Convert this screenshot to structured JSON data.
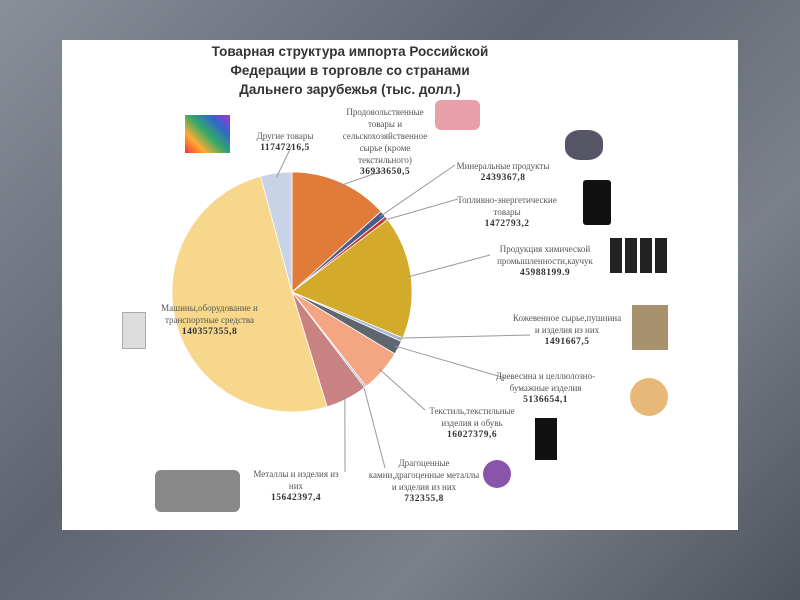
{
  "chart_data": {
    "type": "pie",
    "title": "Товарная структура импорта Российской Федерации в торговле со странами Дальнего зарубежья (тыс. долл.)",
    "start": "top",
    "direction": "clockwise",
    "slices": [
      {
        "label": "Продовольственные товары и сельскохозяйственное сырье (кроме текстильного)",
        "value": 36933650.5,
        "value_text": "36933650,5",
        "color": "#E07B39"
      },
      {
        "label": "Минеральные продукты",
        "value": 2439367.8,
        "value_text": "2439367,8",
        "color": "#4A5A8A"
      },
      {
        "label": "Топливно-энергетические товары",
        "value": 1472793.2,
        "value_text": "1472793,2",
        "color": "#C0392B"
      },
      {
        "label": "Продукция химической промышленности,каучук",
        "value": 45988199.9,
        "value_text": "45988199.9",
        "color": "#D4AA2A"
      },
      {
        "label": "Кожевенное сырье,пушнина и изделия из них",
        "value": 1491667.5,
        "value_text": "1491667,5",
        "color": "#A9B8D0"
      },
      {
        "label": "Древесина и целлюлозно-бумажные изделия",
        "value": 5136654.1,
        "value_text": "5136654,1",
        "color": "#5F6670"
      },
      {
        "label": "Текстиль,текстильные изделия и обувь",
        "value": 16027379.6,
        "value_text": "16027379,6",
        "color": "#F4A582"
      },
      {
        "label": "Драгоценные камни,драгоценные металлы и изделия из них",
        "value": 732355.8,
        "value_text": "732355,8",
        "color": "#A9B8D0"
      },
      {
        "label": "Металлы и изделия из них",
        "value": 15642397.4,
        "value_text": "15642397,4",
        "color": "#C98282"
      },
      {
        "label": "Машины,оборудование и транспортные средства",
        "value": 140357355.8,
        "value_text": "140357355,8",
        "color": "#F6D78B"
      },
      {
        "label": "Другие товары",
        "value": 11747216.5,
        "value_text": "11747216,5",
        "color": "#C9D3E6"
      }
    ]
  }
}
